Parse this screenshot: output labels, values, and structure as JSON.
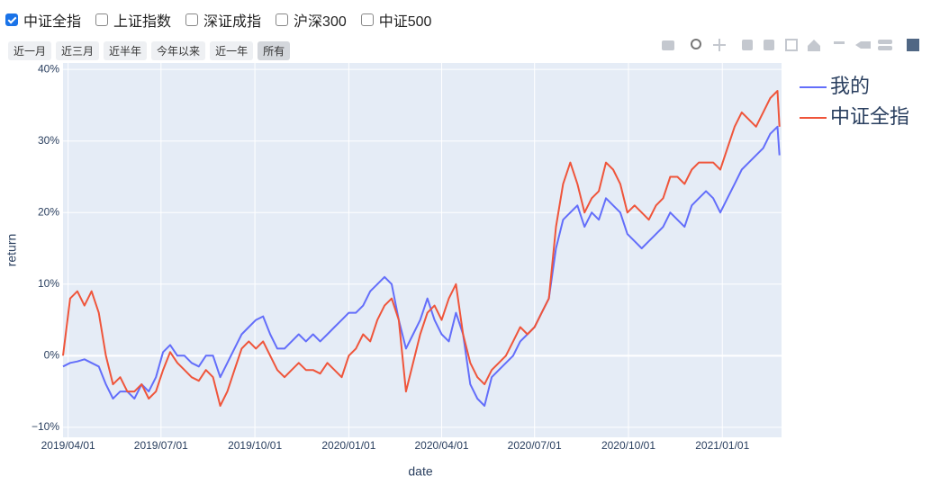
{
  "controls": {
    "checkboxes": [
      {
        "label": "中证全指",
        "checked": true
      },
      {
        "label": "上证指数",
        "checked": false
      },
      {
        "label": "深证成指",
        "checked": false
      },
      {
        "label": "沪深300",
        "checked": false
      },
      {
        "label": "中证500",
        "checked": false
      }
    ],
    "range_buttons": [
      {
        "label": "近一月",
        "active": false
      },
      {
        "label": "近三月",
        "active": false
      },
      {
        "label": "近半年",
        "active": false
      },
      {
        "label": "今年以来",
        "active": false
      },
      {
        "label": "近一年",
        "active": false
      },
      {
        "label": "所有",
        "active": true
      }
    ]
  },
  "chart_data": {
    "type": "line",
    "x_label": "date",
    "y_label": "return",
    "x": [
      "2019/03/27",
      "2019/04/03",
      "2019/04/10",
      "2019/04/17",
      "2019/04/24",
      "2019/05/01",
      "2019/05/08",
      "2019/05/15",
      "2019/05/22",
      "2019/05/29",
      "2019/06/05",
      "2019/06/12",
      "2019/06/19",
      "2019/06/26",
      "2019/07/03",
      "2019/07/10",
      "2019/07/17",
      "2019/07/24",
      "2019/07/31",
      "2019/08/07",
      "2019/08/14",
      "2019/08/21",
      "2019/08/28",
      "2019/09/04",
      "2019/09/11",
      "2019/09/18",
      "2019/09/25",
      "2019/10/02",
      "2019/10/09",
      "2019/10/16",
      "2019/10/23",
      "2019/10/30",
      "2019/11/06",
      "2019/11/13",
      "2019/11/20",
      "2019/11/27",
      "2019/12/04",
      "2019/12/11",
      "2019/12/18",
      "2019/12/25",
      "2020/01/01",
      "2020/01/08",
      "2020/01/15",
      "2020/01/22",
      "2020/01/29",
      "2020/02/05",
      "2020/02/12",
      "2020/02/19",
      "2020/02/26",
      "2020/03/04",
      "2020/03/11",
      "2020/03/18",
      "2020/03/25",
      "2020/04/01",
      "2020/04/08",
      "2020/04/15",
      "2020/04/22",
      "2020/04/29",
      "2020/05/06",
      "2020/05/13",
      "2020/05/20",
      "2020/05/27",
      "2020/06/03",
      "2020/06/10",
      "2020/06/17",
      "2020/06/24",
      "2020/07/01",
      "2020/07/08",
      "2020/07/15",
      "2020/07/22",
      "2020/07/29",
      "2020/08/05",
      "2020/08/12",
      "2020/08/19",
      "2020/08/26",
      "2020/09/02",
      "2020/09/09",
      "2020/09/16",
      "2020/09/23",
      "2020/09/30",
      "2020/10/07",
      "2020/10/14",
      "2020/10/21",
      "2020/10/28",
      "2020/11/04",
      "2020/11/11",
      "2020/11/18",
      "2020/11/25",
      "2020/12/02",
      "2020/12/09",
      "2020/12/16",
      "2020/12/23",
      "2020/12/30",
      "2021/01/06",
      "2021/01/13",
      "2021/01/20",
      "2021/01/27",
      "2021/02/03",
      "2021/02/10",
      "2021/02/17",
      "2021/02/24",
      "2021/02/26"
    ],
    "series": [
      {
        "name": "我的",
        "color": "#636efa",
        "values": [
          -1.5,
          -1,
          -0.8,
          -0.5,
          -1,
          -1.5,
          -4,
          -6,
          -5,
          -5,
          -6,
          -4,
          -5,
          -3,
          0.5,
          1.5,
          0,
          0,
          -1,
          -1.5,
          0,
          0,
          -3,
          -1,
          1,
          3,
          4,
          5,
          5.5,
          3,
          1,
          1,
          2,
          3,
          2,
          3,
          2,
          3,
          4,
          5,
          6,
          6,
          7,
          9,
          10,
          11,
          10,
          5,
          1,
          3,
          5,
          8,
          5,
          3,
          2,
          6,
          3,
          -4,
          -6,
          -7,
          -3,
          -2,
          -1,
          0,
          2,
          3,
          4,
          6,
          8,
          15,
          19,
          20,
          21,
          18,
          20,
          19,
          22,
          21,
          20,
          17,
          16,
          15,
          16,
          17,
          18,
          20,
          19,
          18,
          21,
          22,
          23,
          22,
          20,
          22,
          24,
          26,
          27,
          28,
          29,
          31,
          32,
          28
        ]
      },
      {
        "name": "中证全指",
        "color": "#ef553b",
        "values": [
          0,
          8,
          9,
          7,
          9,
          6,
          0,
          -4,
          -3,
          -5,
          -5,
          -4,
          -6,
          -5,
          -2,
          0.5,
          -1,
          -2,
          -3,
          -3.5,
          -2,
          -3,
          -7,
          -5,
          -2,
          1,
          2,
          1,
          2,
          0,
          -2,
          -3,
          -2,
          -1,
          -2,
          -2,
          -2.5,
          -1,
          -2,
          -3,
          0,
          1,
          3,
          2,
          5,
          7,
          8,
          5,
          -5,
          -1,
          3,
          6,
          7,
          5,
          8,
          10,
          3,
          -1,
          -3,
          -4,
          -2,
          -1,
          0,
          2,
          4,
          3,
          4,
          6,
          8,
          18,
          24,
          27,
          24,
          20,
          22,
          23,
          27,
          26,
          24,
          20,
          21,
          20,
          19,
          21,
          22,
          25,
          25,
          24,
          26,
          27,
          27,
          27,
          26,
          29,
          32,
          34,
          33,
          32,
          34,
          36,
          37,
          32
        ]
      }
    ],
    "xlim": [
      "2019/03/27",
      "2021/02/28"
    ],
    "xticks": [
      "2019/04/01",
      "2019/07/01",
      "2019/10/01",
      "2020/01/01",
      "2020/04/01",
      "2020/07/01",
      "2020/10/01",
      "2021/01/01"
    ],
    "ylim": [
      -11.4,
      40.9
    ],
    "yticks": [
      {
        "value": -10,
        "label": "−10%"
      },
      {
        "value": 0,
        "label": "0%"
      },
      {
        "value": 10,
        "label": "10%"
      },
      {
        "value": 20,
        "label": "20%"
      },
      {
        "value": 30,
        "label": "30%"
      },
      {
        "value": 40,
        "label": "40%"
      }
    ],
    "grid": true
  }
}
